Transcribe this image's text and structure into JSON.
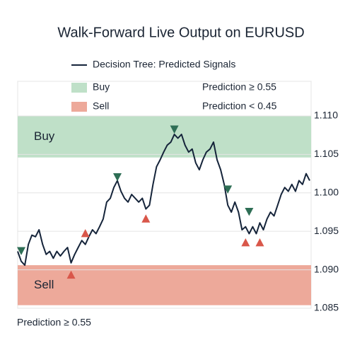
{
  "chart_data": {
    "type": "line",
    "title": "Walk-Forward Live Output on EURUSD",
    "footnote": "Prediction ≥ 0.55",
    "xlim": [
      0,
      82
    ],
    "ylim": [
      1.085,
      1.1145
    ],
    "yticks": [
      {
        "value": 1.11,
        "label": "1.110"
      },
      1.105,
      {
        "value": 1.1,
        "label": "1.100"
      },
      1.095,
      {
        "value": 1.09,
        "label": "1.090"
      },
      1.085
    ],
    "grid": true,
    "x": [
      0,
      1,
      2,
      3,
      4,
      5,
      6,
      7,
      8,
      9,
      10,
      11,
      12,
      13,
      14,
      15,
      16,
      17,
      18,
      19,
      20,
      21,
      22,
      23,
      24,
      25,
      26,
      27,
      28,
      29,
      30,
      31,
      32,
      33,
      34,
      35,
      36,
      37,
      38,
      39,
      40,
      41,
      42,
      43,
      44,
      45,
      46,
      47,
      48,
      49,
      50,
      51,
      52,
      53,
      54,
      55,
      56,
      57,
      58,
      59,
      60,
      61,
      62,
      63,
      64,
      65,
      66,
      67,
      68,
      69,
      70,
      71,
      72,
      73,
      74,
      75,
      76,
      77,
      78,
      79,
      80,
      81,
      82
    ],
    "series": [
      {
        "name": "Decision Tree: Predicted Signals",
        "color": "#15243a",
        "values": [
          1.0924,
          1.0911,
          1.0906,
          1.0933,
          1.0945,
          1.0943,
          1.0952,
          1.0933,
          1.092,
          1.0924,
          1.0915,
          1.0924,
          1.0918,
          1.0924,
          1.0929,
          1.0909,
          1.092,
          1.0929,
          1.0938,
          1.0933,
          1.0943,
          1.0952,
          1.0947,
          1.0956,
          1.0966,
          1.0988,
          1.0993,
          1.1007,
          1.1016,
          1.1002,
          1.0993,
          1.0988,
          1.0998,
          1.0993,
          1.0988,
          1.0993,
          1.0979,
          1.0984,
          1.1011,
          1.1034,
          1.1043,
          1.1053,
          1.1062,
          1.1066,
          1.1076,
          1.1071,
          1.1076,
          1.1062,
          1.1053,
          1.1057,
          1.1039,
          1.103,
          1.1043,
          1.1053,
          1.1057,
          1.1066,
          1.1043,
          1.103,
          1.1011,
          1.0984,
          1.0975,
          1.0988,
          1.0975,
          1.0952,
          1.0956,
          1.0947,
          1.0956,
          1.0947,
          1.0961,
          1.0952,
          1.0966,
          1.0975,
          1.097,
          1.0984,
          1.0998,
          1.1007,
          1.1002,
          1.1011,
          1.1002,
          1.1016,
          1.1011,
          1.1025,
          1.1016
        ]
      }
    ],
    "bands": [
      {
        "label": "Buy",
        "legend_label": "Buy",
        "rule": "Prediction ≥ 0.55",
        "color": "#bfe0c8",
        "range": [
          1.1046,
          1.11
        ]
      },
      {
        "label": "Sell",
        "legend_label": "Sell",
        "rule": "Prediction < 0.45",
        "color": "#eda99a",
        "range": [
          1.0854,
          1.0906
        ]
      }
    ],
    "signals": [
      {
        "kind": "buy",
        "color": "#2e6e55",
        "x": [
          1,
          28,
          44,
          59,
          65
        ],
        "y": [
          1.0924,
          1.102,
          1.1082,
          1.1004,
          1.0975
        ]
      },
      {
        "kind": "sell",
        "color": "#d9574a",
        "x": [
          19,
          15,
          36,
          64,
          68
        ],
        "y": [
          1.0948,
          1.0894,
          1.0967,
          1.0936,
          1.0936
        ]
      }
    ]
  }
}
